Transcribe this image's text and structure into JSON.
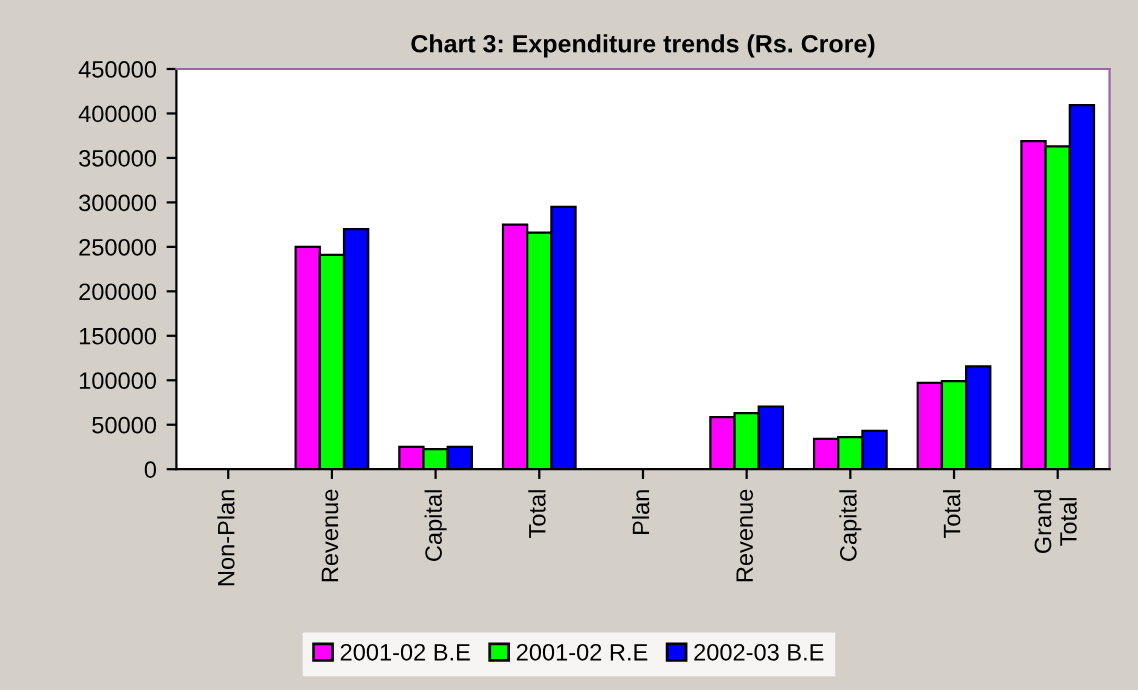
{
  "chart_data": {
    "type": "bar",
    "title": "Chart 3: Expenditure trends (Rs. Crore)",
    "categories": [
      "Non-Plan",
      "Revenue",
      "Capital",
      "Total",
      "Plan",
      "Revenue",
      "Capital",
      "Total",
      "Grand\nTotal"
    ],
    "series": [
      {
        "name": "2001-02 B.E",
        "color": "#ff00ff",
        "values": [
          null,
          250000,
          25000,
          275000,
          null,
          58500,
          34000,
          97000,
          369000
        ]
      },
      {
        "name": "2001-02 R.E",
        "color": "#00ff00",
        "values": [
          null,
          241000,
          22500,
          266000,
          null,
          63000,
          36000,
          99000,
          363000
        ]
      },
      {
        "name": "2002-03 B.E",
        "color": "#0000ff",
        "values": [
          null,
          270000,
          25000,
          295000,
          null,
          70500,
          43000,
          115500,
          409500
        ]
      }
    ],
    "ylim": [
      0,
      450000
    ],
    "yticks": [
      0,
      50000,
      100000,
      150000,
      200000,
      250000,
      300000,
      350000,
      400000,
      450000
    ],
    "grid": false,
    "legend": "bottom"
  }
}
